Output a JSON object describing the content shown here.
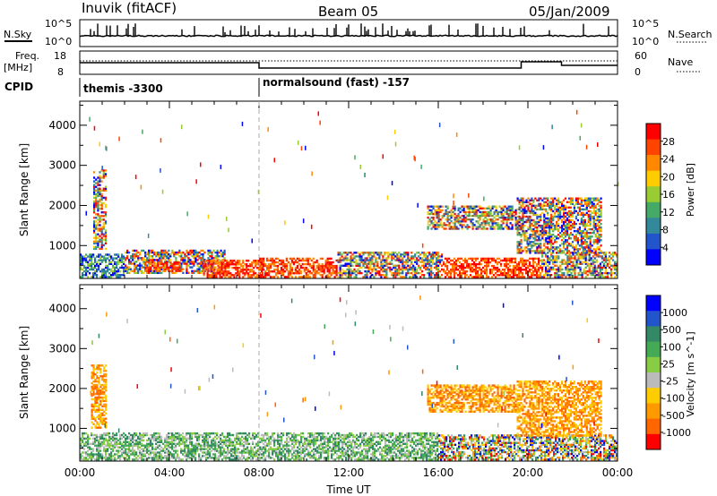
{
  "header": {
    "station": "Inuvik (fitACF)",
    "beam": "Beam 05",
    "date": "05/Jan/2009"
  },
  "noise_panel": {
    "left_label": "N.Sky",
    "right_label": "N.Search",
    "left_ticks": [
      "10^5",
      "10^0"
    ],
    "right_ticks": [
      "10^5",
      "10^0"
    ]
  },
  "freq_panel": {
    "left_label_1": "Freq.",
    "left_label_2": "[MHz]",
    "right_label": "Nave",
    "left_ticks": [
      "18",
      "8"
    ],
    "right_ticks": [
      "60",
      "0"
    ]
  },
  "cpid": {
    "label": "CPID",
    "segments": [
      {
        "start_hour": 0,
        "text": "themis -3300"
      },
      {
        "start_hour": 8,
        "text": "normalsound (fast) -157"
      }
    ]
  },
  "chart_data": [
    {
      "type": "heatmap",
      "panel": "power",
      "ylabel": "Slant Range [km]",
      "xlim_hours": [
        0,
        24
      ],
      "ylim_km": [
        180,
        4600
      ],
      "y_ticks": [
        "1000",
        "2000",
        "3000",
        "4000"
      ],
      "colorbar_label": "Power [dB]",
      "colorbar_ticks": [
        "28",
        "24",
        "20",
        "16",
        "12",
        "8",
        "4"
      ],
      "colors": [
        "#ff0000",
        "#ff4400",
        "#ff8800",
        "#ffcc00",
        "#99cc33",
        "#44aa66",
        "#338899",
        "#2255cc",
        "#0000ff"
      ],
      "regions": [
        {
          "t0": 0.6,
          "t1": 1.2,
          "r0": 900,
          "r1": 2900,
          "level": "mixed"
        },
        {
          "t0": 0.0,
          "t1": 2.0,
          "r0": 200,
          "r1": 800,
          "level": "low"
        },
        {
          "t0": 2.0,
          "t1": 6.5,
          "r0": 300,
          "r1": 900,
          "level": "mid"
        },
        {
          "t0": 2.8,
          "t1": 4.5,
          "r0": 350,
          "r1": 600,
          "level": "high"
        },
        {
          "t0": 5.5,
          "t1": 8.2,
          "r0": 200,
          "r1": 650,
          "level": "high"
        },
        {
          "t0": 8.0,
          "t1": 11.5,
          "r0": 200,
          "r1": 700,
          "level": "high"
        },
        {
          "t0": 11.5,
          "t1": 16.2,
          "r0": 200,
          "r1": 850,
          "level": "mid"
        },
        {
          "t0": 16.2,
          "t1": 20.6,
          "r0": 200,
          "r1": 700,
          "level": "high"
        },
        {
          "t0": 20.6,
          "t1": 24.0,
          "r0": 200,
          "r1": 850,
          "level": "mid"
        },
        {
          "t0": 15.5,
          "t1": 19.5,
          "r0": 1400,
          "r1": 2000,
          "level": "mixed"
        },
        {
          "t0": 19.5,
          "t1": 23.3,
          "r0": 800,
          "r1": 2200,
          "level": "mixed"
        }
      ]
    },
    {
      "type": "heatmap",
      "panel": "velocity",
      "ylabel": "Slant Range [km]",
      "xlabel": "Time UT",
      "xlim_hours": [
        0,
        24
      ],
      "ylim_km": [
        180,
        4600
      ],
      "y_ticks": [
        "1000",
        "2000",
        "3000",
        "4000"
      ],
      "x_ticks": [
        "00:00",
        "04:00",
        "08:00",
        "12:00",
        "16:00",
        "20:00",
        "00:00"
      ],
      "colorbar_label": "Velocity [m s^-1]",
      "colorbar_ticks": [
        "1000",
        "500",
        "100",
        "25",
        "-25",
        "-100",
        "-500",
        "-1000"
      ],
      "colors": [
        "#0000ff",
        "#2255cc",
        "#338866",
        "#44aa55",
        "#88cc44",
        "#bbbbbb",
        "#ffcc00",
        "#ff9900",
        "#ff6600",
        "#ff0000"
      ],
      "regions": [
        {
          "t0": 0.5,
          "t1": 1.2,
          "r0": 1000,
          "r1": 2600,
          "level": "neg"
        },
        {
          "t0": 0.0,
          "t1": 16.0,
          "r0": 200,
          "r1": 900,
          "level": "pos"
        },
        {
          "t0": 16.0,
          "t1": 24.0,
          "r0": 200,
          "r1": 850,
          "level": "mixed"
        },
        {
          "t0": 15.5,
          "t1": 19.5,
          "r0": 1400,
          "r1": 2100,
          "level": "neg"
        },
        {
          "t0": 19.5,
          "t1": 23.3,
          "r0": 800,
          "r1": 2200,
          "level": "neg"
        }
      ]
    }
  ]
}
